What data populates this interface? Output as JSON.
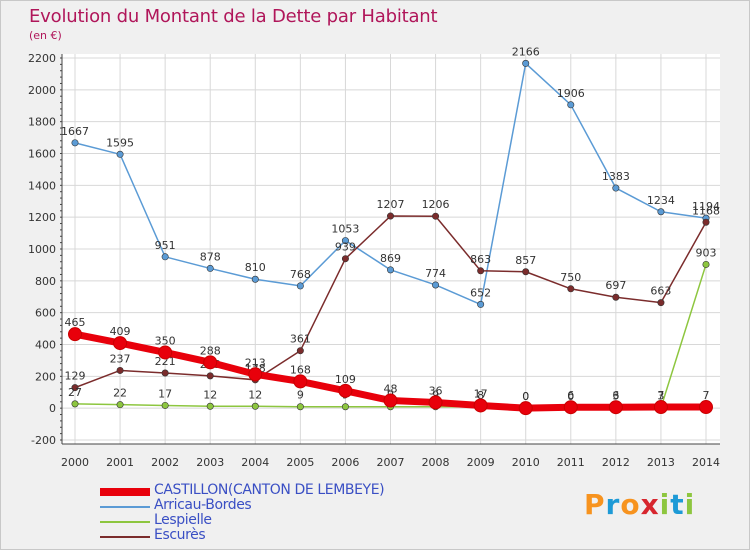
{
  "header": {
    "title": "Evolution du Montant de la Dette par Habitant",
    "unit": "(en €)"
  },
  "logo": {
    "letters": [
      "P",
      "r",
      "o",
      "x",
      "i",
      "t",
      "i"
    ],
    "colors": [
      "#f7931e",
      "#1d9ad6",
      "#f7931e",
      "#d7262e",
      "#8dc63f",
      "#1d9ad6",
      "#8dc63f"
    ]
  },
  "chart_data": {
    "type": "line",
    "x": [
      "2000",
      "2001",
      "2002",
      "2003",
      "2004",
      "2005",
      "2006",
      "2007",
      "2008",
      "2009",
      "2010",
      "2011",
      "2012",
      "2013",
      "2014"
    ],
    "ylim": [
      -200,
      2200
    ],
    "yticks": [
      -200,
      0,
      200,
      400,
      600,
      800,
      1000,
      1200,
      1400,
      1600,
      1800,
      2000,
      2200
    ],
    "grid": true,
    "legend_position": "bottom-left",
    "series": [
      {
        "name": "Arricau-Bordes",
        "color": "#5b9bd5",
        "values": [
          1667,
          1595,
          951,
          878,
          810,
          768,
          1053,
          869,
          774,
          652,
          2166,
          1906,
          1383,
          1234,
          1194
        ],
        "labels": [
          "1667",
          "1595",
          "951",
          "878",
          "810",
          "768",
          "1053",
          "869",
          "774",
          "652",
          "2166",
          "1906",
          "1383",
          "1234",
          "1194"
        ]
      },
      {
        "name": "Escurès",
        "color": "#7b2c2c",
        "values": [
          129,
          237,
          221,
          203,
          178,
          361,
          939,
          1207,
          1206,
          863,
          857,
          750,
          697,
          663,
          1168
        ],
        "labels": [
          "129",
          "237",
          "221",
          "203",
          "178",
          "361",
          "939",
          "1207",
          "1206",
          "863",
          "857",
          "750",
          "697",
          "663",
          "1168"
        ]
      },
      {
        "name": "Lespielle",
        "color": "#8dc63f",
        "values": [
          27,
          22,
          17,
          12,
          12,
          9,
          9,
          9,
          9,
          8,
          0,
          0,
          3,
          3,
          903
        ],
        "labels": [
          "27",
          "22",
          "17",
          "12",
          "12",
          "9",
          "9",
          "9",
          "9",
          "8",
          "0",
          "0",
          "3",
          "3",
          "903"
        ]
      },
      {
        "name": "CASTILLON(CANTON DE LEMBEYE)",
        "color": "#e8000b",
        "values": [
          465,
          409,
          350,
          288,
          213,
          168,
          109,
          48,
          36,
          17,
          0,
          6,
          6,
          7,
          7
        ],
        "labels": [
          "465",
          "409",
          "350",
          "288",
          "213",
          "168",
          "109",
          "48",
          "36",
          "17",
          "0",
          "6",
          "6",
          "7",
          "7"
        ]
      }
    ]
  },
  "legend": [
    {
      "name": "CASTILLON(CANTON DE LEMBEYE)",
      "color": "#e8000b",
      "thickness": 7
    },
    {
      "name": "Arricau-Bordes",
      "color": "#5b9bd5",
      "thickness": 2
    },
    {
      "name": "Lespielle",
      "color": "#8dc63f",
      "thickness": 2
    },
    {
      "name": "Escurès",
      "color": "#7b2c2c",
      "thickness": 2
    }
  ]
}
